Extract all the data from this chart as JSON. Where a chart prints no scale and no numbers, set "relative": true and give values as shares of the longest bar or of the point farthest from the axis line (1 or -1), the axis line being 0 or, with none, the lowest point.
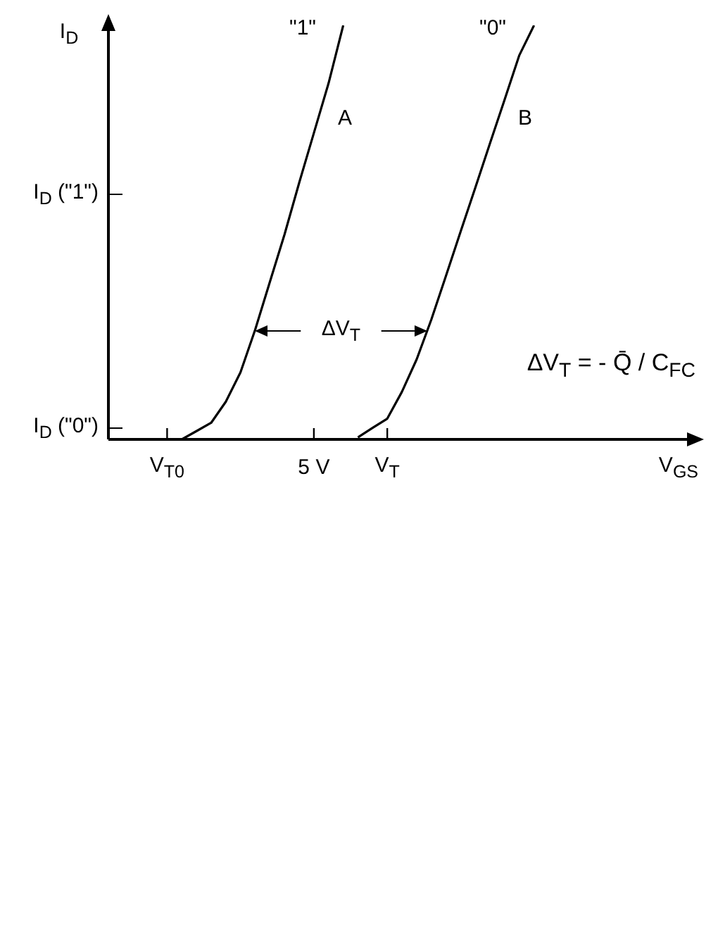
{
  "chart_data": {
    "type": "line",
    "xlabel": "V$_{GS}$",
    "ylabel": "I$_{D}$",
    "relative": true,
    "categories": [
      null,
      null,
      null,
      null,
      "V$_{T0}$",
      null,
      null,
      null,
      null,
      null,
      null,
      null,
      null,
      null,
      "5 V",
      null,
      null,
      null,
      null,
      "V$_{T}$",
      null,
      null,
      null,
      null,
      null,
      null,
      null,
      null,
      null,
      null,
      null,
      null,
      null,
      null,
      null,
      null,
      null,
      null,
      null,
      null,
      null
    ],
    "series": [
      {
        "color": "#000000",
        "values": [
          null,
          null,
          null,
          null,
          null,
          0,
          0.02,
          0.04,
          0.091,
          0.162,
          0.265,
          0.38,
          0.495,
          0.62,
          0.74,
          0.86,
          1,
          null,
          null,
          null,
          null,
          null,
          null,
          null,
          null,
          null,
          null,
          null,
          null,
          null,
          null,
          null,
          null,
          null,
          null,
          null,
          null,
          null,
          null,
          null,
          null
        ]
      },
      {
        "color": "#000000",
        "values": [
          null,
          null,
          null,
          null,
          null,
          null,
          null,
          null,
          null,
          null,
          null,
          null,
          null,
          null,
          null,
          null,
          null,
          0.005,
          0.028,
          0.05,
          0.115,
          0.193,
          0.289,
          0.395,
          0.502,
          0.608,
          0.715,
          0.821,
          0.928,
          1,
          null,
          null,
          null,
          null,
          null,
          null,
          null,
          null,
          null,
          null,
          null
        ]
      }
    ],
    "annotations": [
      "\"1\"",
      "\"0\"",
      "A",
      "B",
      "ΔV$_{T}$",
      "ΔV$_{T}$ = - Q̄ / C$_{FC}$",
      "I$_{D}$ (\"1\")",
      "I$_{D}$ (\"0\")"
    ],
    "marker": "none",
    "line_style": "solid"
  }
}
